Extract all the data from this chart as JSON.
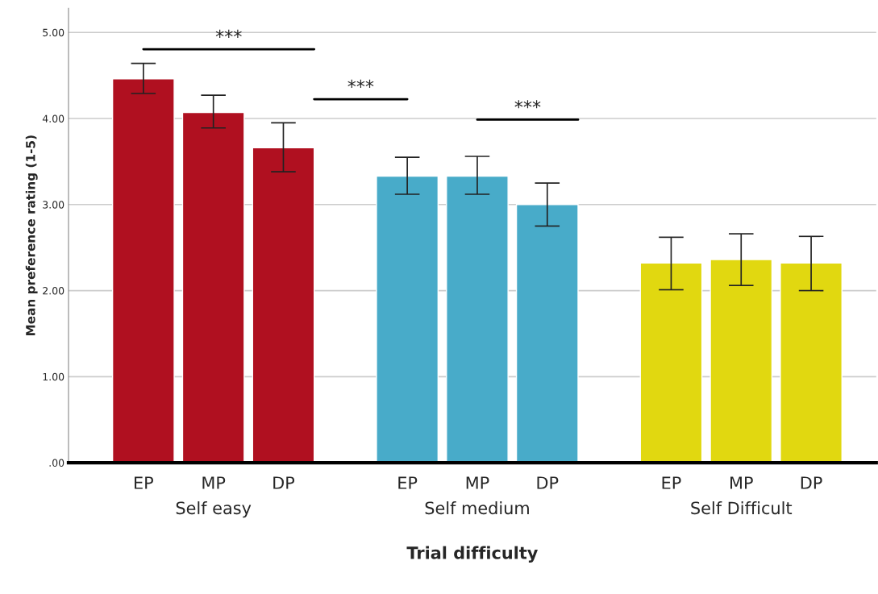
{
  "chart_data": {
    "type": "bar",
    "categories": [
      "EP",
      "MP",
      "DP",
      "EP",
      "MP",
      "DP",
      "EP",
      "MP",
      "DP"
    ],
    "values": [
      4.46,
      4.07,
      3.66,
      3.33,
      3.33,
      3.0,
      2.32,
      2.36,
      2.32
    ],
    "colors": [
      "#b01020",
      "#b01020",
      "#b01020",
      "#48abc9",
      "#48abc9",
      "#48abc9",
      "#e1d810",
      "#e1d810",
      "#e1d810"
    ],
    "errors": [
      [
        4.29,
        4.64
      ],
      [
        3.89,
        4.27
      ],
      [
        3.38,
        3.95
      ],
      [
        3.12,
        3.55
      ],
      [
        3.12,
        3.56
      ],
      [
        2.75,
        3.25
      ],
      [
        2.01,
        2.62
      ],
      [
        2.06,
        2.66
      ],
      [
        2.0,
        2.63
      ]
    ],
    "xlabel": "Trial difficulty",
    "ylabel": "Mean preference rating (1-5)",
    "annotations": [
      "Self easy",
      "Self medium",
      "Self Difficult",
      "***",
      "***",
      "***"
    ],
    "ylim": [
      0,
      5.28
    ],
    "yticks": [
      {
        "value": 0,
        "label": ".00"
      },
      {
        "value": 1,
        "label": "1.00"
      },
      {
        "value": 2,
        "label": "2.00"
      },
      {
        "value": 3,
        "label": "3.00"
      },
      {
        "value": 4,
        "label": "4.00"
      },
      {
        "value": 5,
        "label": "5.00"
      }
    ],
    "grid": "y",
    "legend": false
  }
}
